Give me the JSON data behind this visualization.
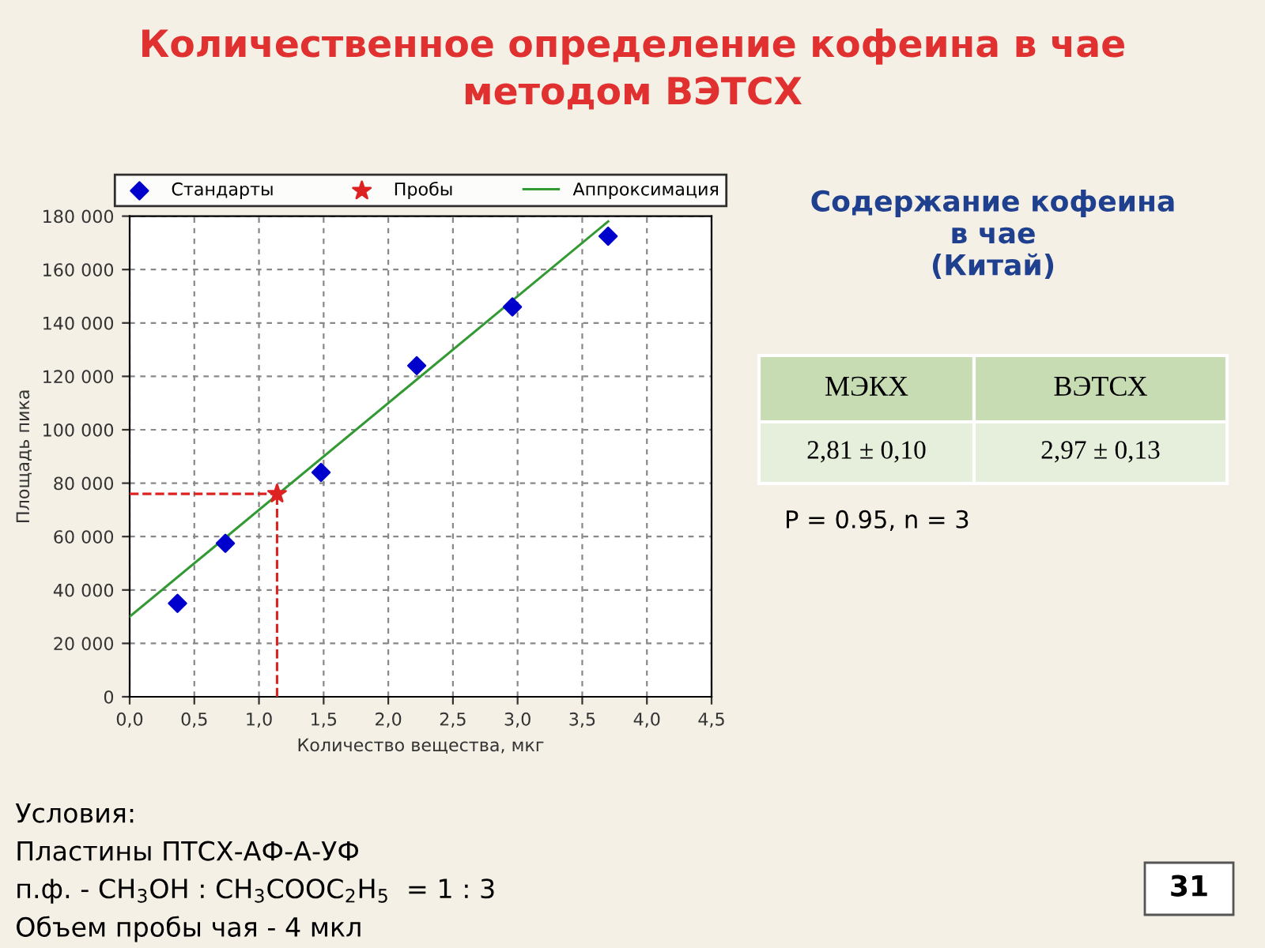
{
  "chart_data": {
    "type": "scatter",
    "title": "Количественное определение кофеина в чае\nметодом ВЭТСХ",
    "xlabel": "Количество вещества, мкг",
    "ylabel": "Площадь пика",
    "series": [
      {
        "name": "Стандарты",
        "color": "#0000cc",
        "marker": "diamond",
        "x": [
          0.37,
          0.74,
          1.48,
          2.22,
          2.96,
          3.7
        ],
        "values": [
          35000,
          57500,
          84000,
          124000,
          146000,
          172500
        ]
      },
      {
        "name": "Пробы",
        "color": "#dd2222",
        "marker": "star",
        "x": [
          1.14
        ],
        "values": [
          76000
        ]
      },
      {
        "name": "Аппроксимация",
        "type": "line",
        "color": "#339933",
        "marker": "none",
        "line_style": "solid",
        "x": [
          0,
          3.7
        ],
        "values": [
          30000,
          178000
        ]
      },
      {
        "type": "line",
        "color": "#dd2222",
        "marker": "none",
        "line_style": "dashed",
        "x": [
          0,
          1.14
        ],
        "values": [
          76000,
          76000
        ]
      },
      {
        "type": "line",
        "color": "#dd2222",
        "marker": "none",
        "line_style": "dashed",
        "x": [
          1.14,
          1.14
        ],
        "values": [
          0,
          76000
        ]
      }
    ],
    "xlim": [
      0,
      4.5
    ],
    "xticks": [
      {
        "value": 0,
        "label": "0,0"
      },
      {
        "value": 0.5,
        "label": "0,5"
      },
      {
        "value": 1,
        "label": "1,0"
      },
      {
        "value": 1.5,
        "label": "1,5"
      },
      {
        "value": 2,
        "label": "2,0"
      },
      {
        "value": 2.5,
        "label": "2,5"
      },
      {
        "value": 3,
        "label": "3,0"
      },
      {
        "value": 3.5,
        "label": "3,5"
      },
      {
        "value": 4,
        "label": "4,0"
      },
      {
        "value": 4.5,
        "label": "4,5"
      }
    ],
    "ylim": [
      0,
      180000
    ],
    "yticks": [
      0,
      {
        "value": 20000,
        "label": "20 000"
      },
      {
        "value": 40000,
        "label": "40 000"
      },
      {
        "value": 60000,
        "label": "60 000"
      },
      {
        "value": 80000,
        "label": "80 000"
      },
      {
        "value": 100000,
        "label": "100 000"
      },
      {
        "value": 120000,
        "label": "120 000"
      },
      {
        "value": 140000,
        "label": "140 000"
      },
      {
        "value": 160000,
        "label": "160 000"
      },
      {
        "value": 180000,
        "label": "180 000"
      }
    ],
    "grid": true,
    "legend": "top",
    "annotations": [
      "Содержание кофеина\nв чае\n(Китай)",
      "МЭКХ",
      "ВЭТСХ",
      "2,81 ± 0,10",
      "2,97 ± 0,13",
      "P = 0.95, n = 3",
      "Условия:",
      "Пластины ПТСХ-АФ-А-УФ",
      "п.ф. - CH$_{3}$OH : CH$_{3}$COOC$_{2}$H$_{5}$  = 1 : 3",
      "Объем пробы чая - 4 мкл",
      "31"
    ]
  }
}
